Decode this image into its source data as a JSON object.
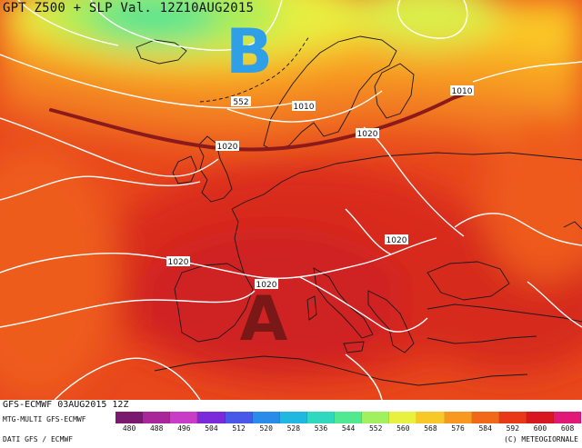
{
  "title": "GPT Z500 + SLP Val. 12Z10AUG2015",
  "pressure_centers": [
    {
      "letter": "B",
      "color": "#2f9fe8"
    },
    {
      "letter": "A",
      "color": "#7a1818"
    }
  ],
  "isoline_labels": [
    "552",
    "1010",
    "1010",
    "1020",
    "1020",
    "1020",
    "1020",
    "1020"
  ],
  "footer": {
    "run": "GFS-ECMWF 03AUG2015 12Z",
    "model": "MTG-MULTI GFS-ECMWF",
    "source": "DATI GFS / ECMWF",
    "credit": "(C) METEOGIORNALE"
  },
  "legend": {
    "values": [
      "480",
      "488",
      "496",
      "504",
      "512",
      "520",
      "528",
      "536",
      "544",
      "552",
      "560",
      "568",
      "576",
      "584",
      "592",
      "600",
      "608"
    ],
    "colors": [
      "#7a1a6e",
      "#a8269a",
      "#c83cc8",
      "#7a2ad8",
      "#4a58e8",
      "#2a8ce8",
      "#20b8e0",
      "#30d8c0",
      "#50e890",
      "#a0f060",
      "#e8f040",
      "#f8c828",
      "#f89820",
      "#f06818",
      "#e83818",
      "#d81820",
      "#e01878"
    ]
  },
  "colors": {
    "trough_line": "#8b1a1a",
    "isolines": "#ffffff",
    "coast": "#1a1a1a"
  }
}
